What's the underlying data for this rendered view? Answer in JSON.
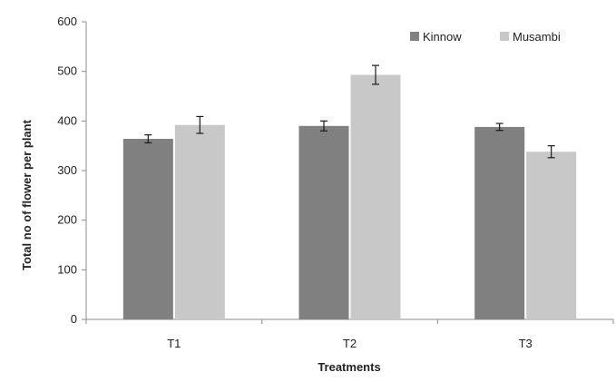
{
  "chart_data": {
    "type": "bar",
    "title": "",
    "xlabel": "Treatments",
    "ylabel": "Total no of flower per plant",
    "categories": [
      "T1",
      "T2",
      "T3"
    ],
    "ylim": [
      0,
      600
    ],
    "yticks": [
      0,
      100,
      200,
      300,
      400,
      500,
      600
    ],
    "series": [
      {
        "name": "Kinnow",
        "values": [
          364,
          390,
          388
        ],
        "errors": [
          8,
          10,
          7
        ],
        "color": "#808080"
      },
      {
        "name": "Musambi",
        "values": [
          392,
          493,
          338
        ],
        "errors": [
          17,
          19,
          12
        ],
        "color": "#c8c8c8"
      }
    ],
    "legend_position": "top-right",
    "grid": false,
    "error_bars": true
  }
}
